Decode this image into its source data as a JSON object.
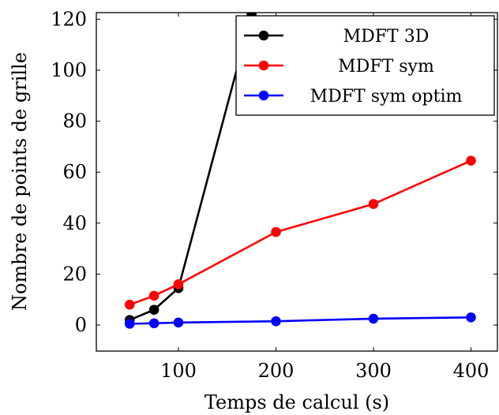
{
  "chart_data": {
    "type": "line",
    "title": "",
    "xlabel": "Temps de calcul (s)",
    "ylabel": "Nombre de points de grille",
    "xlim": [
      0,
      410
    ],
    "ylim": [
      -10,
      122
    ],
    "x_ticks": [
      100,
      200,
      300,
      400
    ],
    "y_ticks": [
      0,
      20,
      40,
      60,
      80,
      100,
      120
    ],
    "grid": false,
    "legend_position": "top-right",
    "series": [
      {
        "name": "MDFT 3D",
        "color": "#000000",
        "points": [
          [
            50,
            2
          ],
          [
            75,
            6
          ],
          [
            100,
            14.5
          ],
          [
            175,
            122
          ]
        ]
      },
      {
        "name": "MDFT sym",
        "color": "#ff0000",
        "points": [
          [
            50,
            8
          ],
          [
            75,
            11.5
          ],
          [
            100,
            16
          ],
          [
            200,
            36.5
          ],
          [
            300,
            47.5
          ],
          [
            400,
            64.5
          ]
        ]
      },
      {
        "name": "MDFT sym optim",
        "color": "#0000ff",
        "points": [
          [
            50,
            0.5
          ],
          [
            75,
            0.7
          ],
          [
            100,
            1
          ],
          [
            200,
            1.5
          ],
          [
            300,
            2.5
          ],
          [
            400,
            3
          ]
        ]
      }
    ]
  }
}
